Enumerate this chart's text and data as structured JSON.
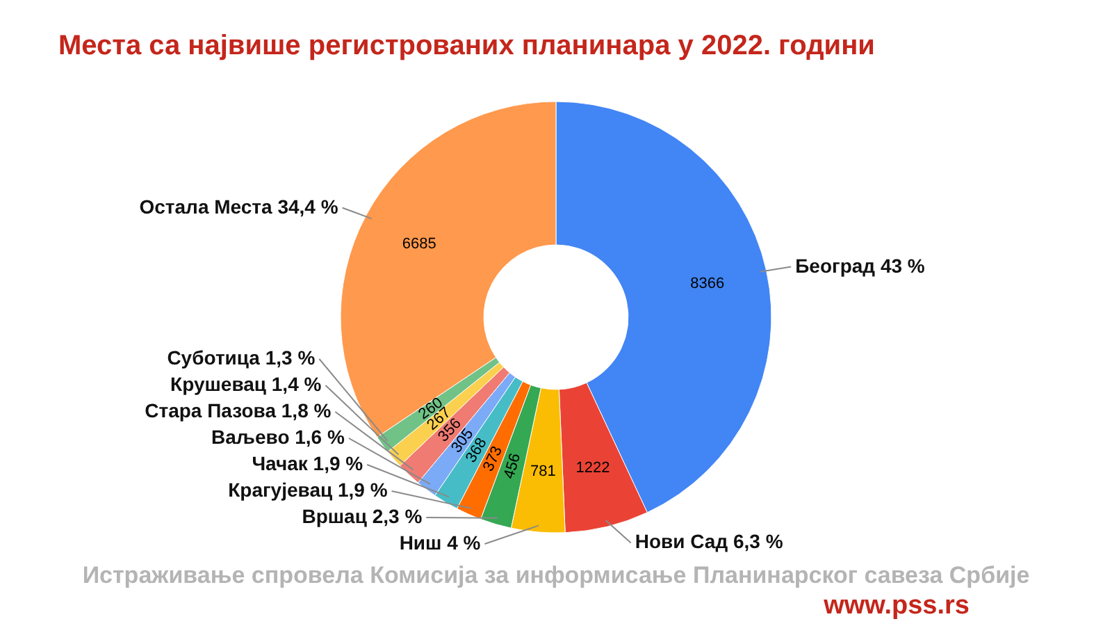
{
  "chart_data": {
    "type": "donut",
    "title": "Места са највише регистрованих  планинара у 2022. години",
    "categories": [
      "Београд 43 %",
      "Нови Сад 6,3 %",
      "Ниш 4 %",
      "Вршац 2,3 %",
      "Крагујевац 1,9 %",
      "Чачак 1,9 %",
      "Ваљево 1,6 %",
      "Стара Пазова 1,8 %",
      "Крушевац 1,4 %",
      "Суботица 1,3 %",
      "Остала Места 34,4 %"
    ],
    "values": [
      8366,
      1222,
      781,
      456,
      373,
      368,
      305,
      356,
      267,
      260,
      6685
    ],
    "colors": [
      "#4285f4",
      "#ea4335",
      "#fbbc04",
      "#34a853",
      "#ff6d01",
      "#46bdc6",
      "#7baaf7",
      "#f07b72",
      "#fcd04f",
      "#71c287",
      "#ff994d"
    ],
    "data_labels": true,
    "legend": false,
    "annotations": [
      "Истраживање спровела Комисија за информисање Планинарског савеза Србије",
      "www.pss.rs"
    ]
  }
}
